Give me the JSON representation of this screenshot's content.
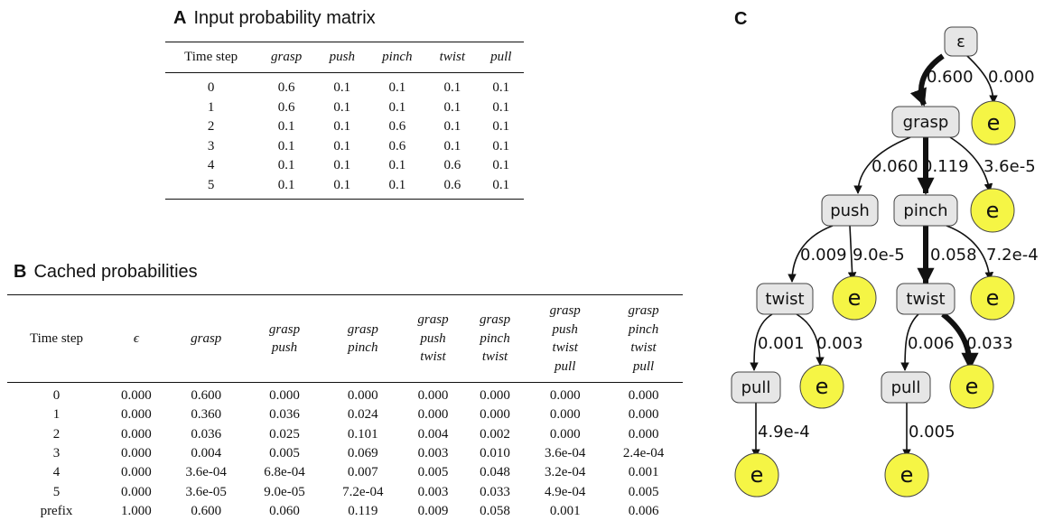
{
  "panelA": {
    "letter": "A",
    "title": "Input probability matrix",
    "headers": [
      "Time step",
      "grasp",
      "push",
      "pinch",
      "twist",
      "pull"
    ],
    "rows": [
      [
        "0",
        "0.6",
        "0.1",
        "0.1",
        "0.1",
        "0.1"
      ],
      [
        "1",
        "0.6",
        "0.1",
        "0.1",
        "0.1",
        "0.1"
      ],
      [
        "2",
        "0.1",
        "0.1",
        "0.6",
        "0.1",
        "0.1"
      ],
      [
        "3",
        "0.1",
        "0.1",
        "0.6",
        "0.1",
        "0.1"
      ],
      [
        "4",
        "0.1",
        "0.1",
        "0.1",
        "0.6",
        "0.1"
      ],
      [
        "5",
        "0.1",
        "0.1",
        "0.1",
        "0.6",
        "0.1"
      ]
    ]
  },
  "panelB": {
    "letter": "B",
    "title": "Cached probabilities",
    "headers": [
      [
        "Time step"
      ],
      [
        "ϵ"
      ],
      [
        "grasp"
      ],
      [
        "grasp",
        "push"
      ],
      [
        "grasp",
        "pinch"
      ],
      [
        "grasp",
        "push",
        "twist"
      ],
      [
        "grasp",
        "pinch",
        "twist"
      ],
      [
        "grasp",
        "push",
        "twist",
        "pull"
      ],
      [
        "grasp",
        "pinch",
        "twist",
        "pull"
      ]
    ],
    "rows": [
      [
        "0",
        "0.000",
        "0.600",
        "0.000",
        "0.000",
        "0.000",
        "0.000",
        "0.000",
        "0.000"
      ],
      [
        "1",
        "0.000",
        "0.360",
        "0.036",
        "0.024",
        "0.000",
        "0.000",
        "0.000",
        "0.000"
      ],
      [
        "2",
        "0.000",
        "0.036",
        "0.025",
        "0.101",
        "0.004",
        "0.002",
        "0.000",
        "0.000"
      ],
      [
        "3",
        "0.000",
        "0.004",
        "0.005",
        "0.069",
        "0.003",
        "0.010",
        "3.6e-04",
        "2.4e-04"
      ],
      [
        "4",
        "0.000",
        "3.6e-04",
        "6.8e-04",
        "0.007",
        "0.005",
        "0.048",
        "3.2e-04",
        "0.001"
      ],
      [
        "5",
        "0.000",
        "3.6e-05",
        "9.0e-05",
        "7.2e-04",
        "0.003",
        "0.033",
        "4.9e-04",
        "0.005"
      ],
      [
        "prefix",
        "1.000",
        "0.600",
        "0.060",
        "0.119",
        "0.009",
        "0.058",
        "0.001",
        "0.006"
      ]
    ]
  },
  "panelC": {
    "letter": "C",
    "node_fill": "#e6e6e6",
    "leaf_fill": "#f5f545",
    "nodes": {
      "root": "ε",
      "grasp": "grasp",
      "push": "push",
      "pinch": "pinch",
      "twist_left": "twist",
      "twist_right": "twist",
      "pull_left": "pull",
      "pull_right": "pull",
      "end": "e"
    },
    "edges": {
      "root_grasp": "0.600",
      "root_end": "0.000",
      "grasp_push": "0.060",
      "grasp_pinch": "0.119",
      "grasp_end": "3.6e-5",
      "push_twist": "0.009",
      "push_end": "9.0e-5",
      "pinch_twist": "0.058",
      "pinch_end": "7.2e-4",
      "twistL_pull": "0.001",
      "twistL_end": "0.003",
      "twistR_pull": "0.006",
      "twistR_end": "0.033",
      "pullL_end": "4.9e-4",
      "pullR_end": "0.005"
    }
  }
}
